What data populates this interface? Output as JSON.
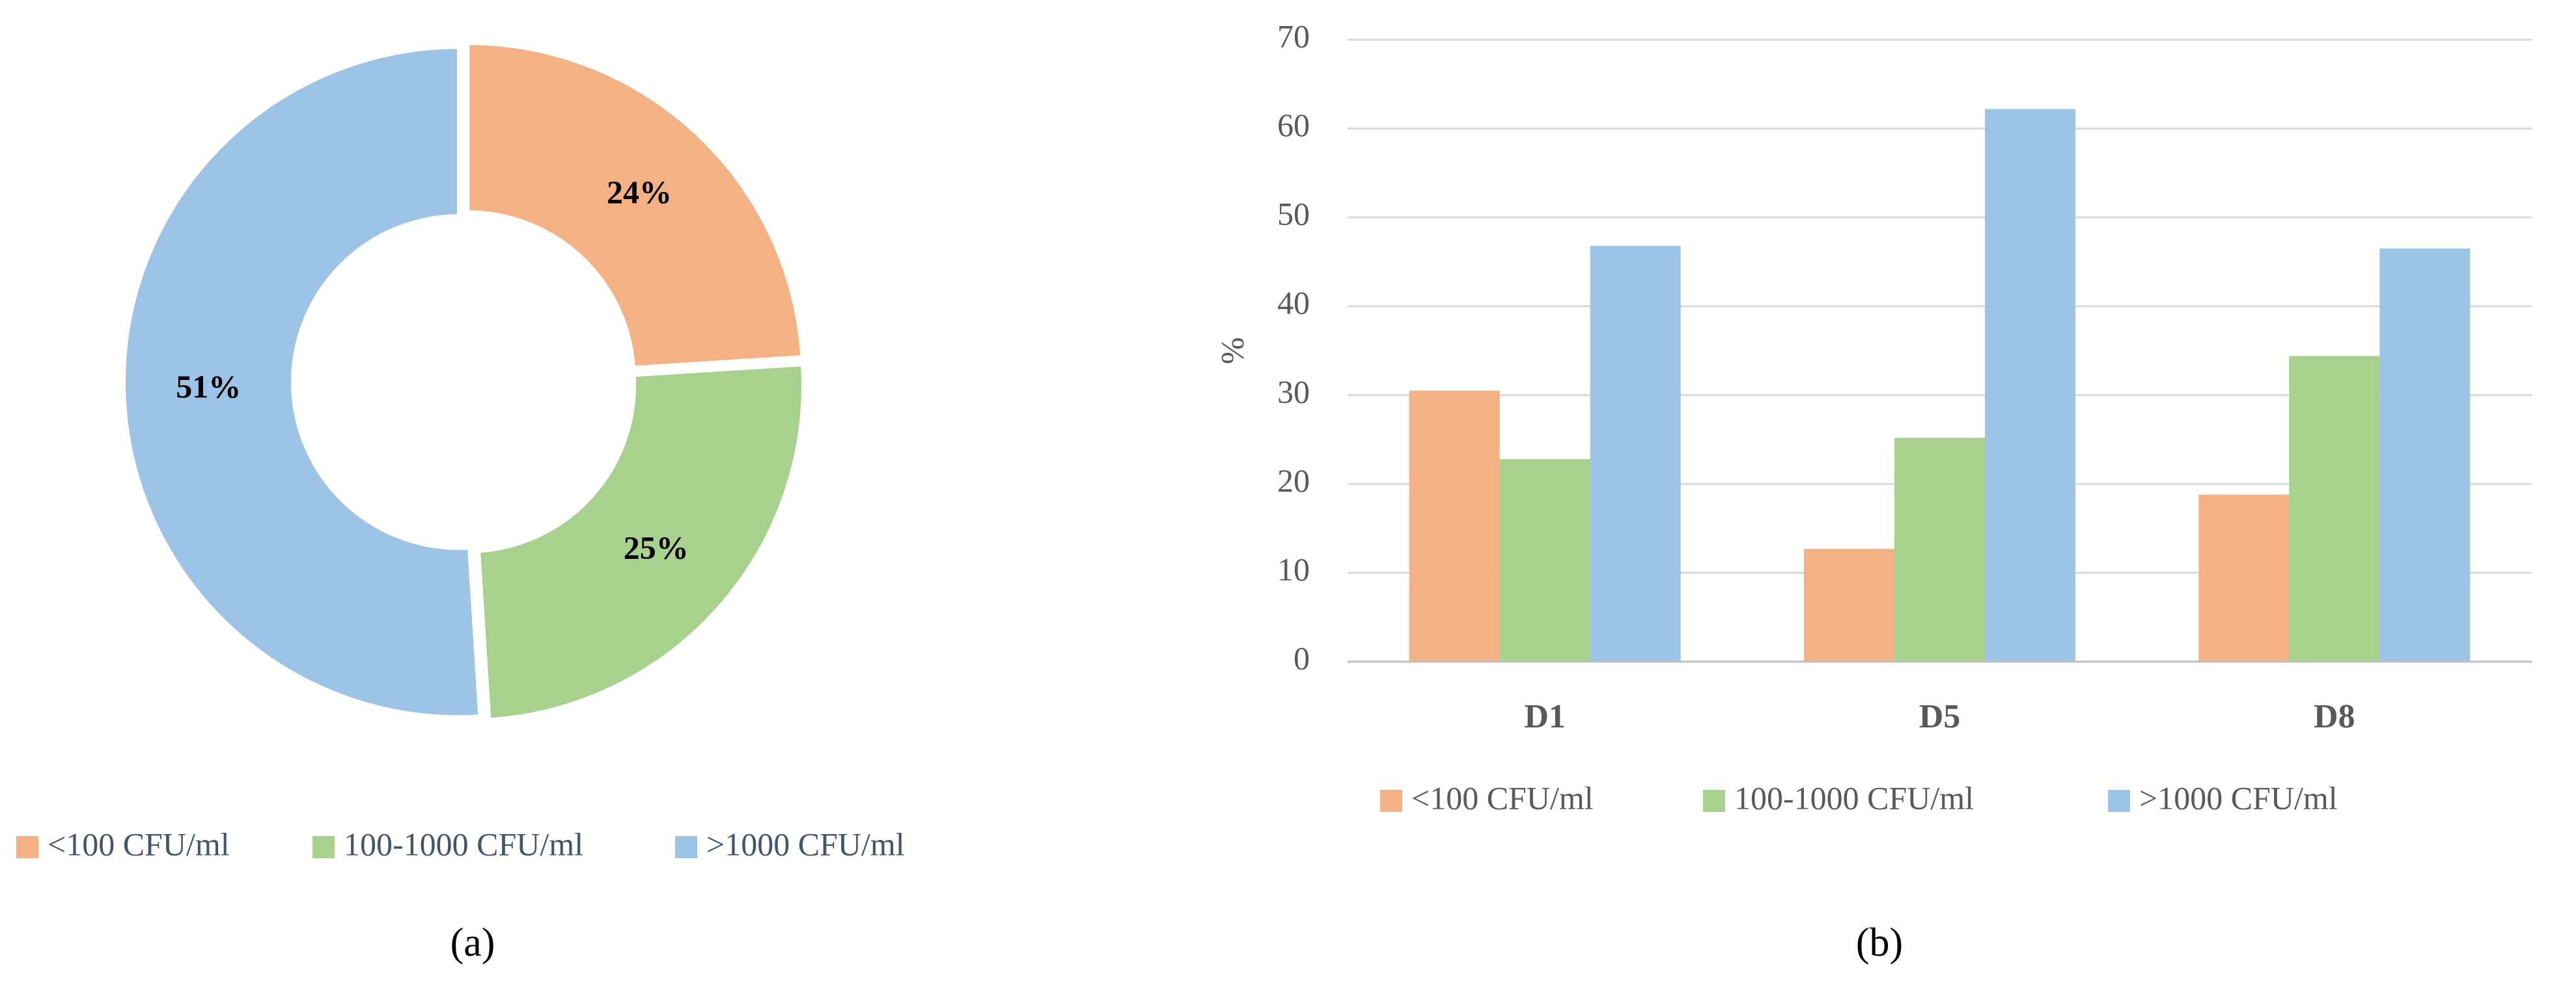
{
  "chart_data": [
    {
      "type": "donut",
      "caption": "(a)",
      "categories": [
        "<100 CFU/ml",
        "100-1000 CFU/ml",
        ">1000 CFU/ml"
      ],
      "values": [
        24,
        25,
        51
      ],
      "value_labels": [
        "24%",
        "25%",
        "51%"
      ],
      "colors": [
        "#f4b183",
        "#a9d18e",
        "#9dc3e6"
      ],
      "legend": "bottom"
    },
    {
      "type": "bar",
      "caption": "(b)",
      "y_label": "%",
      "categories": [
        "D1",
        "D5",
        "D8"
      ],
      "series": [
        {
          "name": "<100 CFU/ml",
          "color": "#f4b183",
          "values": [
            30.5,
            12.7,
            18.8
          ]
        },
        {
          "name": "100-1000 CFU/ml",
          "color": "#a9d18e",
          "values": [
            22.8,
            25.2,
            34.4
          ]
        },
        {
          "name": ">1000 CFU/ml",
          "color": "#9dc3e6",
          "values": [
            46.8,
            62.2,
            46.5
          ]
        }
      ],
      "ylim": [
        0,
        70
      ],
      "yticks": [
        0,
        10,
        20,
        30,
        40,
        50,
        60,
        70
      ],
      "grid": true,
      "legend": "bottom"
    }
  ]
}
